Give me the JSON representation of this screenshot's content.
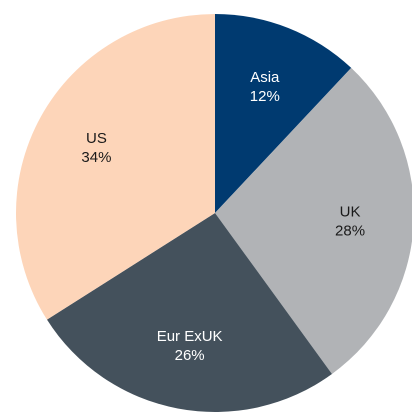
{
  "chart_data": {
    "type": "pie",
    "categories": [
      "Asia",
      "UK",
      "Eur ExUK",
      "US"
    ],
    "values": [
      12,
      28,
      26,
      34
    ],
    "value_labels": [
      "12%",
      "28%",
      "26%",
      "34%"
    ],
    "colors": [
      "#003a70",
      "#b1b3b6",
      "#44515c",
      "#fdd5b9"
    ]
  }
}
